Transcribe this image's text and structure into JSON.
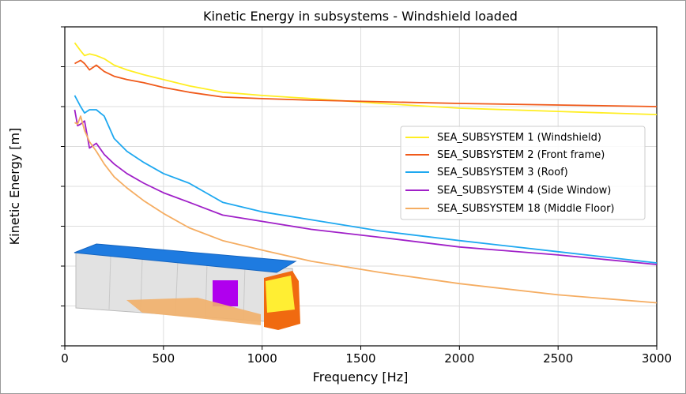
{
  "chart_data": {
    "type": "line",
    "title": "Kinetic Energy in subsystems - Windshield loaded",
    "xlabel": "Frequency [Hz]",
    "ylabel": "Kinetic Energy [m]",
    "xlim": [
      0,
      3000
    ],
    "xticks": [
      0,
      500,
      1000,
      1500,
      2000,
      2500,
      3000
    ],
    "ylim": [
      0,
      10
    ],
    "y_tick_labels_shown": false,
    "grid": true,
    "legend_position": "right",
    "series": [
      {
        "name": "SEA_SUBSYSTEM 1 (Windshield)",
        "color": "#ffee22",
        "x": [
          50,
          80,
          100,
          125,
          160,
          200,
          250,
          315,
          400,
          500,
          630,
          800,
          1000,
          1250,
          1600,
          2000,
          2500,
          3000
        ],
        "y": [
          9.5,
          9.25,
          9.1,
          9.15,
          9.1,
          9.0,
          8.8,
          8.65,
          8.5,
          8.35,
          8.15,
          7.95,
          7.85,
          7.75,
          7.6,
          7.45,
          7.35,
          7.25
        ]
      },
      {
        "name": "SEA_SUBSYSTEM 2 (Front frame)",
        "color": "#f05a1a",
        "x": [
          50,
          80,
          100,
          125,
          160,
          200,
          250,
          315,
          400,
          500,
          630,
          800,
          1000,
          1250,
          1600,
          2000,
          2500,
          3000
        ],
        "y": [
          8.85,
          8.95,
          8.85,
          8.65,
          8.8,
          8.6,
          8.45,
          8.35,
          8.25,
          8.1,
          7.95,
          7.8,
          7.75,
          7.7,
          7.65,
          7.6,
          7.55,
          7.5
        ]
      },
      {
        "name": "SEA_SUBSYSTEM 3 (Roof)",
        "color": "#1ea8f0",
        "x": [
          50,
          80,
          100,
          125,
          160,
          200,
          250,
          315,
          400,
          500,
          630,
          800,
          1000,
          1250,
          1600,
          2000,
          2500,
          3000
        ],
        "y": [
          7.85,
          7.5,
          7.3,
          7.4,
          7.4,
          7.2,
          6.5,
          6.1,
          5.75,
          5.4,
          5.1,
          4.5,
          4.2,
          3.95,
          3.6,
          3.3,
          2.95,
          2.6
        ]
      },
      {
        "name": "SEA_SUBSYSTEM 4 (Side Window)",
        "color": "#a020c8",
        "x": [
          50,
          65,
          80,
          100,
          125,
          160,
          200,
          250,
          315,
          400,
          500,
          630,
          800,
          1000,
          1250,
          1600,
          2000,
          2500,
          3000
        ],
        "y": [
          7.4,
          6.9,
          6.95,
          7.05,
          6.2,
          6.35,
          6.0,
          5.7,
          5.4,
          5.1,
          4.8,
          4.5,
          4.1,
          3.9,
          3.65,
          3.4,
          3.1,
          2.85,
          2.55
        ]
      },
      {
        "name": "SEA_SUBSYSTEM 18 (Middle Floor)",
        "color": "#f5ad62",
        "x": [
          50,
          65,
          80,
          100,
          125,
          160,
          200,
          250,
          315,
          400,
          500,
          630,
          800,
          1000,
          1250,
          1600,
          2000,
          2500,
          3000
        ],
        "y": [
          7.0,
          6.95,
          7.2,
          6.75,
          6.4,
          6.1,
          5.7,
          5.3,
          4.95,
          4.55,
          4.15,
          3.7,
          3.3,
          3.0,
          2.65,
          2.3,
          1.95,
          1.6,
          1.35
        ]
      }
    ]
  }
}
